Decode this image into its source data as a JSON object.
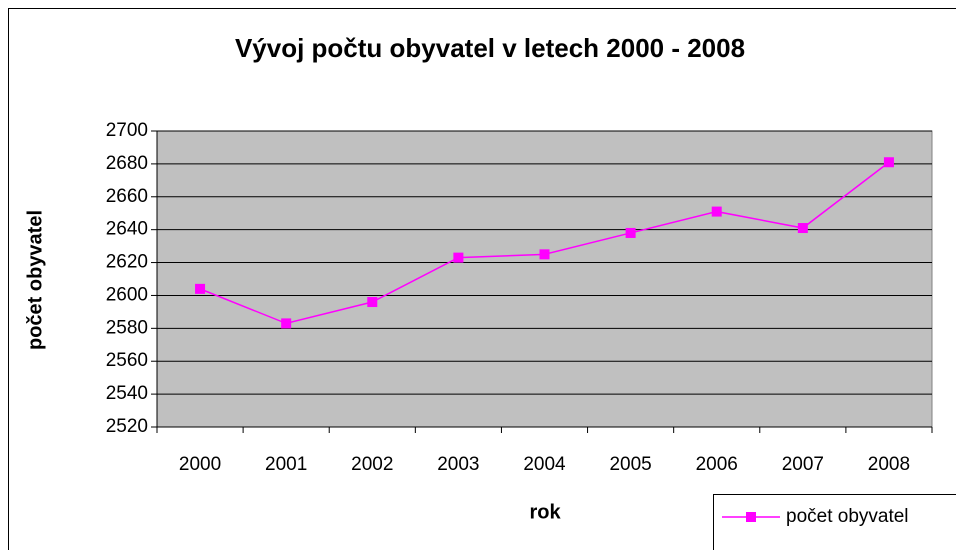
{
  "chart_data": {
    "type": "line",
    "title": "Vývoj počtu obyvatel v letech 2000 - 2008",
    "x_label": "rok",
    "y_label": "počet obyvatel",
    "categories": [
      "2000",
      "2001",
      "2002",
      "2003",
      "2004",
      "2005",
      "2006",
      "2007",
      "2008"
    ],
    "series": [
      {
        "name": "počet obyvatel",
        "color": "#ff00ff",
        "values": [
          2604,
          2583,
          2596,
          2623,
          2625,
          2638,
          2651,
          2641,
          2681
        ]
      }
    ],
    "ylim": [
      2520,
      2700
    ],
    "yticks": [
      2520,
      2540,
      2560,
      2580,
      2600,
      2620,
      2640,
      2660,
      2680,
      2700
    ],
    "grid": true,
    "legend": "bottom-right"
  }
}
